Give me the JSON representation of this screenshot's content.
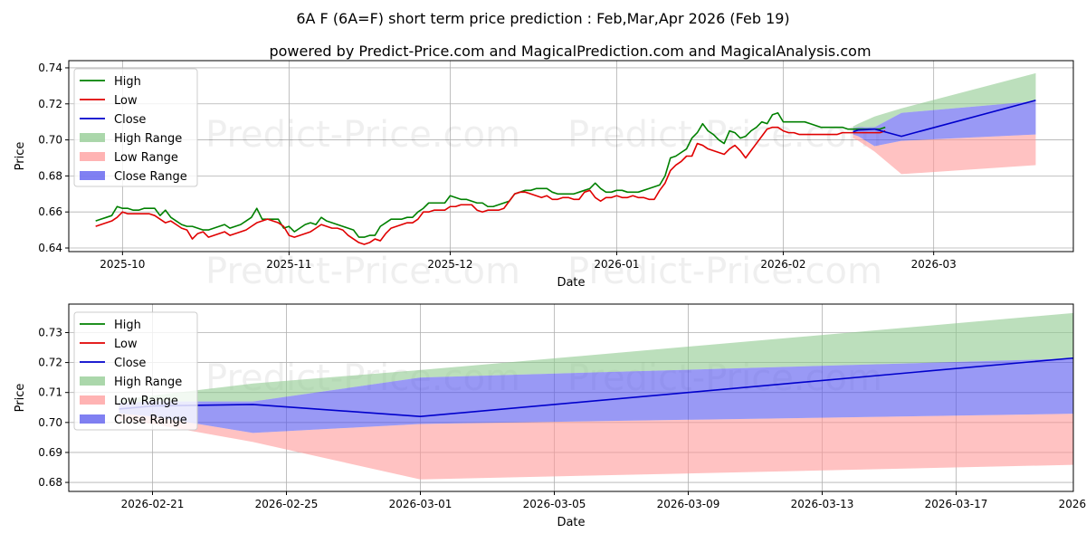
{
  "title": "6A F (6A=F) short term price prediction : Feb,Mar,Apr 2026 (Feb 19)",
  "subtitle": "powered by Predict-Price.com and MagicalPrediction.com and MagicalAnalysis.com",
  "watermark": "Predict-Price.com",
  "colors": {
    "high": "#008000",
    "low": "#e00000",
    "close": "#0000cc",
    "high_range": "#8fc98f",
    "low_range": "#ff9a9a",
    "close_range": "#5555ee"
  },
  "chart_data": [
    {
      "type": "line",
      "xlabel": "Date",
      "ylabel": "Price",
      "ylim": [
        0.638,
        0.744
      ],
      "x_ticks": [
        "2025-10",
        "2025-11",
        "2025-12",
        "2026-01",
        "2026-02",
        "2026-03"
      ],
      "x_tick_days": [
        5,
        36,
        66,
        97,
        128,
        156
      ],
      "y_ticks": [
        "0.64",
        "0.66",
        "0.68",
        "0.70",
        "0.72",
        "0.74"
      ],
      "legend": [
        "High",
        "Low",
        "Close",
        "High Range",
        "Low Range",
        "Close Range"
      ],
      "legend_position": "top-left",
      "x_range_days": [
        -5,
        182
      ],
      "history_days": [
        0,
        1,
        2,
        3,
        4,
        5,
        6,
        7,
        8,
        9,
        10,
        11,
        12,
        13,
        14,
        15,
        16,
        17,
        18,
        19,
        20,
        21,
        22,
        23,
        24,
        25,
        26,
        27,
        28,
        29,
        30,
        31,
        32,
        33,
        34,
        35,
        36,
        37,
        38,
        39,
        40,
        41,
        42,
        43,
        44,
        45,
        46,
        47,
        48,
        49,
        50,
        51,
        52,
        53,
        54,
        55,
        56,
        57,
        58,
        59,
        60,
        61,
        62,
        63,
        64,
        65,
        66,
        67,
        68,
        69,
        70,
        71,
        72,
        73,
        74,
        75,
        76,
        77,
        78,
        79,
        80,
        81,
        82,
        83,
        84,
        85,
        86,
        87,
        88,
        89,
        90,
        91,
        92,
        93,
        94,
        95,
        96,
        97,
        98,
        99,
        100,
        101,
        102,
        103,
        104,
        105,
        106,
        107,
        108,
        109,
        110,
        111,
        112,
        113,
        114,
        115,
        116,
        117,
        118,
        119,
        120,
        121,
        122,
        123,
        124,
        125,
        126,
        127,
        128,
        129,
        130,
        131,
        132,
        133,
        134,
        135,
        136,
        137,
        138,
        139,
        140,
        141,
        142,
        143,
        144,
        145,
        146,
        147
      ],
      "history_high": [
        0.655,
        0.656,
        0.657,
        0.658,
        0.663,
        0.662,
        0.662,
        0.661,
        0.661,
        0.662,
        0.662,
        0.662,
        0.658,
        0.661,
        0.657,
        0.655,
        0.653,
        0.652,
        0.652,
        0.651,
        0.65,
        0.65,
        0.651,
        0.652,
        0.653,
        0.651,
        0.652,
        0.653,
        0.655,
        0.657,
        0.662,
        0.656,
        0.656,
        0.656,
        0.656,
        0.651,
        0.652,
        0.649,
        0.651,
        0.653,
        0.654,
        0.653,
        0.657,
        0.655,
        0.654,
        0.653,
        0.652,
        0.651,
        0.65,
        0.646,
        0.646,
        0.647,
        0.647,
        0.652,
        0.654,
        0.656,
        0.656,
        0.656,
        0.657,
        0.657,
        0.66,
        0.662,
        0.665,
        0.665,
        0.665,
        0.665,
        0.669,
        0.668,
        0.667,
        0.667,
        0.666,
        0.665,
        0.665,
        0.663,
        0.663,
        0.664,
        0.665,
        0.666,
        0.67,
        0.671,
        0.672,
        0.672,
        0.673,
        0.673,
        0.673,
        0.671,
        0.67,
        0.67,
        0.67,
        0.67,
        0.671,
        0.672,
        0.673,
        0.676,
        0.673,
        0.671,
        0.671,
        0.672,
        0.672,
        0.671,
        0.671,
        0.671,
        0.672,
        0.673,
        0.674,
        0.675,
        0.68,
        0.69,
        0.691,
        0.693,
        0.695,
        0.701,
        0.704,
        0.709,
        0.705,
        0.703,
        0.7,
        0.698,
        0.705,
        0.704,
        0.701,
        0.702,
        0.705,
        0.707,
        0.71,
        0.709,
        0.714,
        0.715,
        0.71,
        0.71,
        0.71,
        0.71,
        0.71,
        0.709,
        0.708,
        0.707,
        0.707,
        0.707,
        0.707,
        0.707,
        0.706,
        0.706,
        0.706,
        0.706,
        0.706,
        0.706,
        0.706,
        0.707
      ],
      "history_low": [
        0.652,
        0.653,
        0.654,
        0.655,
        0.657,
        0.66,
        0.659,
        0.659,
        0.659,
        0.659,
        0.659,
        0.658,
        0.656,
        0.654,
        0.655,
        0.653,
        0.651,
        0.65,
        0.645,
        0.648,
        0.649,
        0.646,
        0.647,
        0.648,
        0.649,
        0.647,
        0.648,
        0.649,
        0.65,
        0.652,
        0.654,
        0.655,
        0.656,
        0.655,
        0.654,
        0.652,
        0.647,
        0.646,
        0.647,
        0.648,
        0.649,
        0.651,
        0.653,
        0.652,
        0.651,
        0.651,
        0.65,
        0.647,
        0.645,
        0.643,
        0.642,
        0.643,
        0.645,
        0.644,
        0.648,
        0.651,
        0.652,
        0.653,
        0.654,
        0.654,
        0.656,
        0.66,
        0.66,
        0.661,
        0.661,
        0.661,
        0.663,
        0.663,
        0.664,
        0.664,
        0.664,
        0.661,
        0.66,
        0.661,
        0.661,
        0.661,
        0.662,
        0.666,
        0.67,
        0.671,
        0.671,
        0.67,
        0.669,
        0.668,
        0.669,
        0.667,
        0.667,
        0.668,
        0.668,
        0.667,
        0.667,
        0.671,
        0.672,
        0.668,
        0.666,
        0.668,
        0.668,
        0.669,
        0.668,
        0.668,
        0.669,
        0.668,
        0.668,
        0.667,
        0.667,
        0.672,
        0.676,
        0.683,
        0.686,
        0.688,
        0.691,
        0.691,
        0.698,
        0.697,
        0.695,
        0.694,
        0.693,
        0.692,
        0.695,
        0.697,
        0.694,
        0.69,
        0.694,
        0.698,
        0.702,
        0.706,
        0.707,
        0.707,
        0.705,
        0.704,
        0.704,
        0.703,
        0.703,
        0.703,
        0.703,
        0.703,
        0.703,
        0.703,
        0.703,
        0.704,
        0.704,
        0.704,
        0.704,
        0.704,
        0.704,
        0.704,
        0.704,
        0.705
      ],
      "forecast_days": [
        141,
        142,
        145,
        150,
        175
      ],
      "forecast_close": [
        0.7045,
        0.7055,
        0.706,
        0.702,
        0.722
      ],
      "forecast_close_lower": [
        0.703,
        0.702,
        0.6965,
        0.6995,
        0.703
      ],
      "forecast_close_upper": [
        0.7065,
        0.707,
        0.707,
        0.715,
        0.7215
      ],
      "forecast_high_lower": [
        0.7065,
        0.707,
        0.707,
        0.715,
        0.7215
      ],
      "forecast_high_upper": [
        0.7075,
        0.709,
        0.713,
        0.7175,
        0.737
      ],
      "forecast_low_lower": [
        0.701,
        0.6995,
        0.6935,
        0.681,
        0.686
      ],
      "forecast_low_upper": [
        0.703,
        0.702,
        0.6965,
        0.6995,
        0.703
      ]
    },
    {
      "type": "line",
      "xlabel": "Date",
      "ylabel": "Price",
      "ylim": [
        0.677,
        0.7395
      ],
      "x_range_days": [
        -0.5,
        29.5
      ],
      "x_ticks": [
        "2026-02-21",
        "2026-02-25",
        "2026-03-01",
        "2026-03-05",
        "2026-03-09",
        "2026-03-13",
        "2026-03-17",
        "2026-03-21"
      ],
      "x_tick_days": [
        2,
        6,
        10,
        14,
        18,
        22,
        26,
        30
      ],
      "y_ticks": [
        "0.68",
        "0.69",
        "0.70",
        "0.71",
        "0.72",
        "0.73"
      ],
      "legend": [
        "High",
        "Low",
        "Close",
        "High Range",
        "Low Range",
        "Close Range"
      ],
      "legend_position": "top-left",
      "forecast_days": [
        1,
        2,
        5,
        10,
        30
      ],
      "forecast_close": [
        0.7045,
        0.7055,
        0.706,
        0.702,
        0.722
      ],
      "forecast_close_lower": [
        0.703,
        0.702,
        0.6965,
        0.6995,
        0.703
      ],
      "forecast_close_upper": [
        0.7065,
        0.707,
        0.707,
        0.715,
        0.7215
      ],
      "forecast_high_lower": [
        0.7065,
        0.707,
        0.707,
        0.715,
        0.7215
      ],
      "forecast_high_upper": [
        0.7075,
        0.709,
        0.713,
        0.7175,
        0.737
      ],
      "forecast_low_lower": [
        0.701,
        0.6995,
        0.6935,
        0.681,
        0.686
      ],
      "forecast_low_upper": [
        0.703,
        0.702,
        0.6965,
        0.6995,
        0.703
      ]
    }
  ]
}
